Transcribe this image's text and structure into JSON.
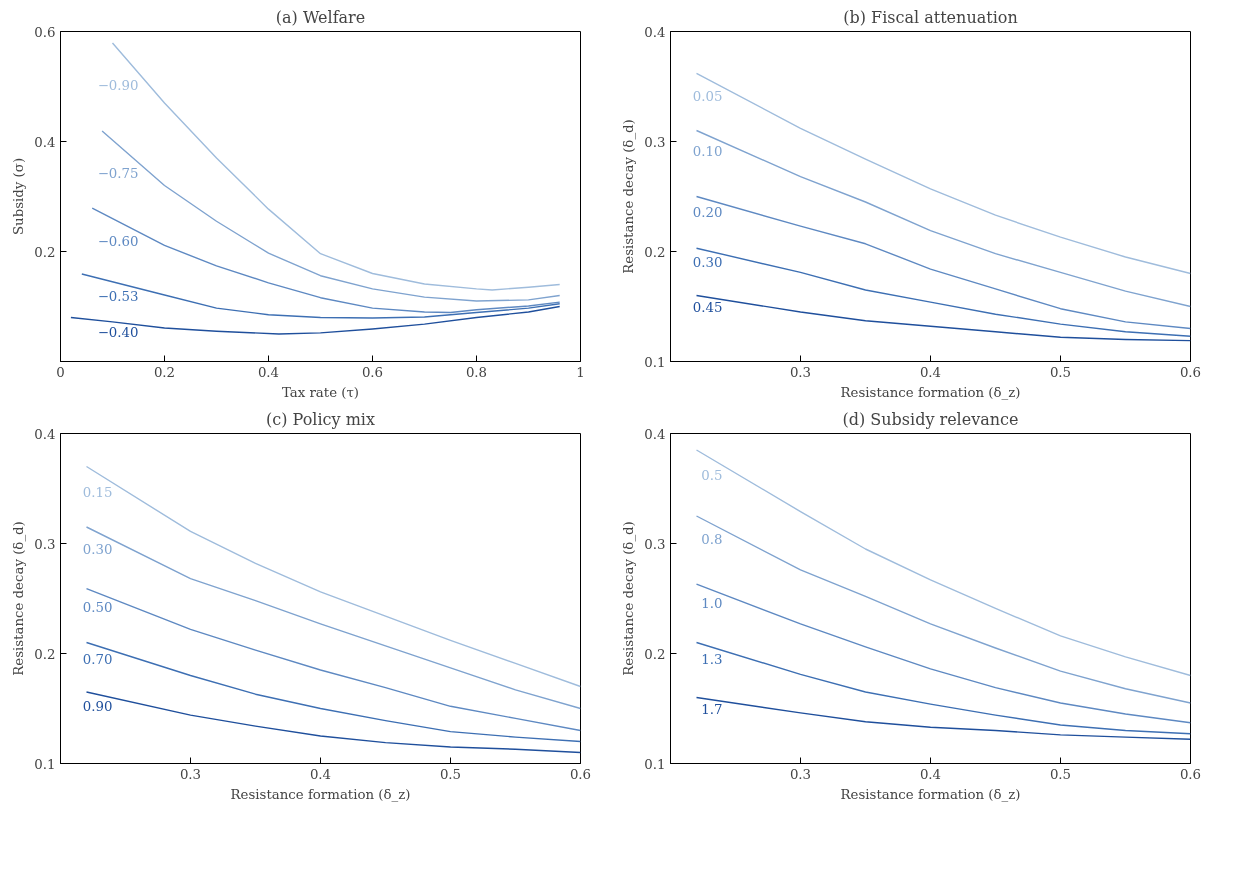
{
  "chart_data": [
    {
      "type": "line",
      "title": "(a) Welfare",
      "xlabel": "Tax rate (τ)",
      "ylabel": "Subsidy (σ)",
      "xlim": [
        0,
        1
      ],
      "ylim": [
        0,
        0.6
      ],
      "xticks": [
        0,
        0.2,
        0.4,
        0.6,
        0.8,
        1
      ],
      "yticks": [
        {
          "value": 0,
          "label": null
        },
        0.2,
        0.4,
        0.6
      ],
      "grid": false,
      "line_style": "solid",
      "marker": "none",
      "series": [
        {
          "name": "−0.90",
          "color": "#9fbcdc",
          "x": [
            0.1,
            0.2,
            0.3,
            0.4,
            0.5,
            0.6,
            0.7,
            0.8,
            0.83,
            0.9,
            0.96
          ],
          "values": [
            0.579,
            0.47,
            0.37,
            0.277,
            0.196,
            0.16,
            0.141,
            0.132,
            0.13,
            0.135,
            0.14
          ]
        },
        {
          "name": "−0.75",
          "color": "#7fa3cf",
          "x": [
            0.08,
            0.2,
            0.3,
            0.4,
            0.5,
            0.6,
            0.7,
            0.8,
            0.9,
            0.96
          ],
          "values": [
            0.419,
            0.32,
            0.255,
            0.197,
            0.156,
            0.132,
            0.117,
            0.11,
            0.112,
            0.12
          ]
        },
        {
          "name": "−0.60",
          "color": "#5e89c2",
          "x": [
            0.061,
            0.2,
            0.3,
            0.4,
            0.5,
            0.6,
            0.7,
            0.75,
            0.8,
            0.9,
            0.96
          ],
          "values": [
            0.279,
            0.211,
            0.174,
            0.143,
            0.116,
            0.097,
            0.09,
            0.089,
            0.094,
            0.101,
            0.108
          ]
        },
        {
          "name": "−0.53",
          "color": "#3d6fb3",
          "x": [
            0.041,
            0.2,
            0.3,
            0.4,
            0.5,
            0.6,
            0.7,
            0.8,
            0.9,
            0.96
          ],
          "values": [
            0.159,
            0.121,
            0.097,
            0.085,
            0.08,
            0.079,
            0.081,
            0.089,
            0.097,
            0.105
          ]
        },
        {
          "name": "−0.40",
          "color": "#1f4f9c",
          "x": [
            0.02,
            0.1,
            0.2,
            0.3,
            0.42,
            0.5,
            0.6,
            0.7,
            0.8,
            0.9,
            0.96
          ],
          "values": [
            0.08,
            0.072,
            0.061,
            0.055,
            0.05,
            0.052,
            0.059,
            0.068,
            0.08,
            0.09,
            0.1
          ]
        }
      ]
    },
    {
      "type": "line",
      "title": "(b) Fiscal attenuation",
      "xlabel": "Resistance formation (δ_z)",
      "ylabel": "Resistance decay (δ_d)",
      "xlim": [
        0.2,
        0.6
      ],
      "ylim": [
        0.1,
        0.4
      ],
      "xticks": [
        0.3,
        0.4,
        0.5,
        0.6
      ],
      "yticks": [
        0.1,
        0.2,
        0.3,
        0.4
      ],
      "grid": false,
      "line_style": "solid",
      "marker": "none",
      "x": [
        0.22,
        0.3,
        0.35,
        0.4,
        0.45,
        0.5,
        0.55,
        0.6
      ],
      "series": [
        {
          "name": "0.05",
          "color": "#9fbcdc",
          "values": [
            0.362,
            0.312,
            0.284,
            0.257,
            0.233,
            0.213,
            0.195,
            0.18
          ]
        },
        {
          "name": "0.10",
          "color": "#7fa3cf",
          "values": [
            0.31,
            0.268,
            0.245,
            0.219,
            0.198,
            0.181,
            0.164,
            0.15
          ]
        },
        {
          "name": "0.20",
          "color": "#5e89c2",
          "values": [
            0.25,
            0.223,
            0.207,
            0.184,
            0.166,
            0.148,
            0.136,
            0.13
          ]
        },
        {
          "name": "0.30",
          "color": "#3d6fb3",
          "values": [
            0.203,
            0.181,
            0.165,
            0.154,
            0.143,
            0.134,
            0.127,
            0.123
          ]
        },
        {
          "name": "0.45",
          "color": "#1f4f9c",
          "values": [
            0.16,
            0.145,
            0.137,
            0.132,
            0.127,
            0.122,
            0.12,
            0.119
          ]
        }
      ]
    },
    {
      "type": "line",
      "title": "(c) Policy mix",
      "xlabel": "Resistance formation (δ_z)",
      "ylabel": "Resistance decay (δ_d)",
      "xlim": [
        0.2,
        0.6
      ],
      "ylim": [
        0.1,
        0.4
      ],
      "xticks": [
        0.3,
        0.4,
        0.5,
        0.6
      ],
      "yticks": [
        0.1,
        0.2,
        0.3,
        0.4
      ],
      "grid": false,
      "line_style": "solid",
      "marker": "none",
      "x": [
        0.22,
        0.3,
        0.35,
        0.4,
        0.45,
        0.5,
        0.55,
        0.6
      ],
      "series": [
        {
          "name": "0.15",
          "color": "#9fbcdc",
          "values": [
            0.37,
            0.311,
            0.282,
            0.256,
            0.234,
            0.212,
            0.191,
            0.17
          ]
        },
        {
          "name": "0.30",
          "color": "#7fa3cf",
          "values": [
            0.315,
            0.268,
            0.248,
            0.227,
            0.207,
            0.187,
            0.167,
            0.15
          ]
        },
        {
          "name": "0.50",
          "color": "#5e89c2",
          "values": [
            0.259,
            0.222,
            0.203,
            0.185,
            0.169,
            0.152,
            0.141,
            0.13
          ]
        },
        {
          "name": "0.70",
          "color": "#3d6fb3",
          "values": [
            0.21,
            0.18,
            0.163,
            0.15,
            0.139,
            0.129,
            0.124,
            0.12
          ]
        },
        {
          "name": "0.90",
          "color": "#1f4f9c",
          "values": [
            0.165,
            0.144,
            0.134,
            0.125,
            0.119,
            0.115,
            0.113,
            0.11
          ]
        }
      ]
    },
    {
      "type": "line",
      "title": "(d) Subsidy relevance",
      "xlabel": "Resistance formation (δ_z)",
      "ylabel": "Resistance decay (δ_d)",
      "xlim": [
        0.2,
        0.6
      ],
      "ylim": [
        0.1,
        0.4
      ],
      "xticks": [
        0.3,
        0.4,
        0.5,
        0.6
      ],
      "yticks": [
        0.1,
        0.2,
        0.3,
        0.4
      ],
      "grid": false,
      "line_style": "solid",
      "marker": "none",
      "x": [
        0.22,
        0.3,
        0.35,
        0.4,
        0.45,
        0.5,
        0.55,
        0.6
      ],
      "series": [
        {
          "name": "0.5",
          "color": "#9fbcdc",
          "values": [
            0.385,
            0.329,
            0.295,
            0.267,
            0.241,
            0.216,
            0.197,
            0.18
          ]
        },
        {
          "name": "0.8",
          "color": "#7fa3cf",
          "values": [
            0.325,
            0.276,
            0.252,
            0.227,
            0.205,
            0.184,
            0.168,
            0.155
          ]
        },
        {
          "name": "1.0",
          "color": "#5e89c2",
          "values": [
            0.263,
            0.227,
            0.206,
            0.186,
            0.169,
            0.155,
            0.145,
            0.137
          ]
        },
        {
          "name": "1.3",
          "color": "#3d6fb3",
          "values": [
            0.21,
            0.181,
            0.165,
            0.154,
            0.144,
            0.135,
            0.13,
            0.127
          ]
        },
        {
          "name": "1.7",
          "color": "#1f4f9c",
          "values": [
            0.16,
            0.146,
            0.138,
            0.133,
            0.13,
            0.126,
            0.124,
            0.122
          ]
        }
      ]
    }
  ]
}
